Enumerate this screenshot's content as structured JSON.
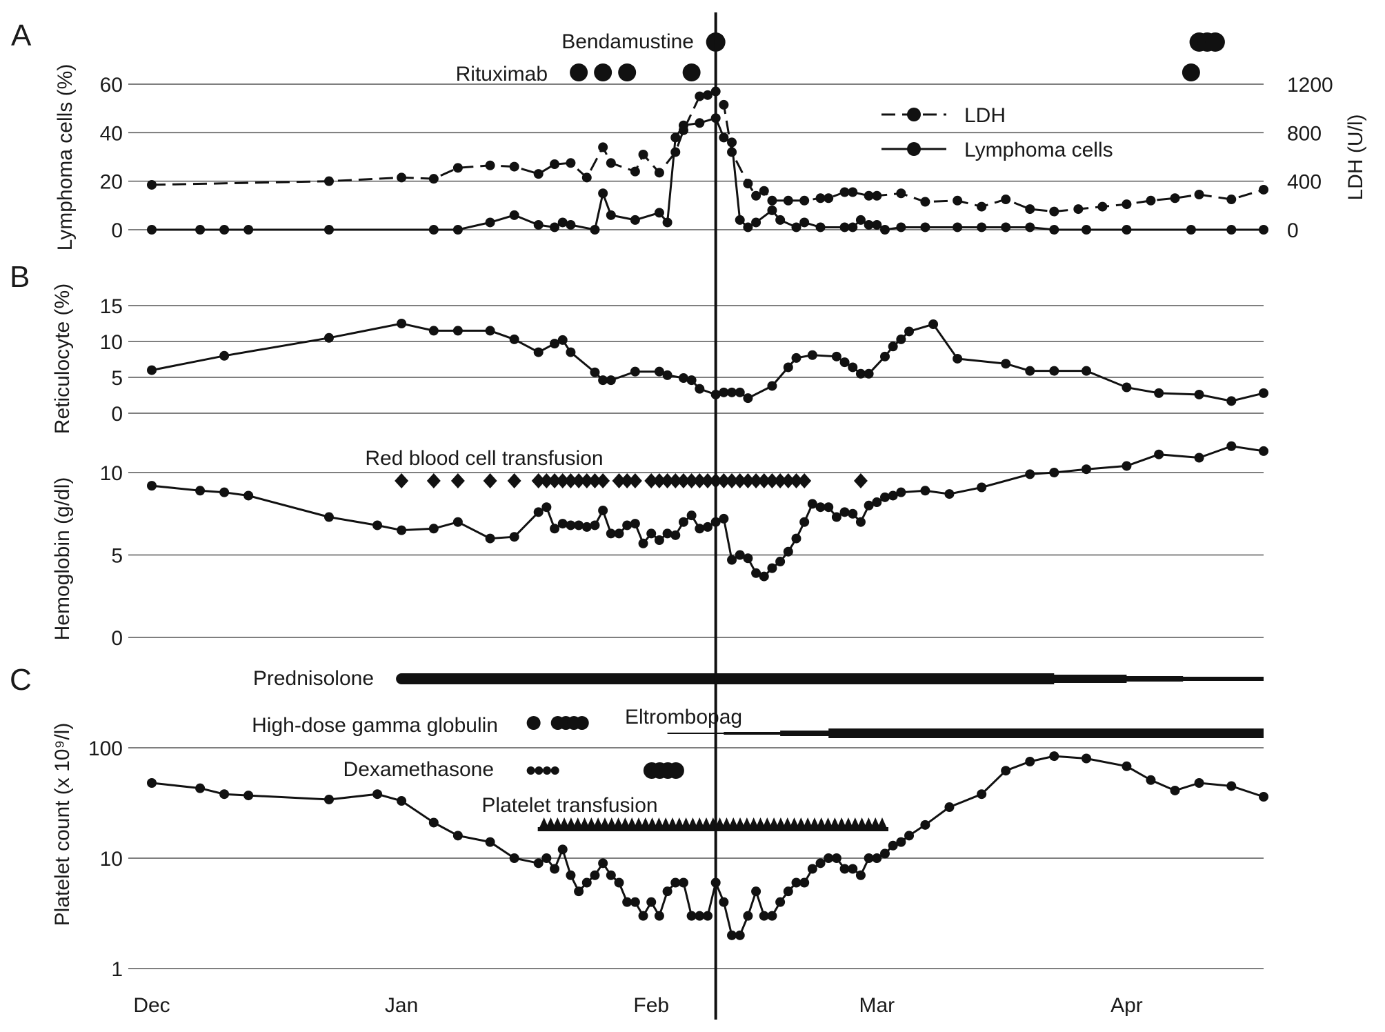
{
  "colors": {
    "ink": "#111111",
    "grid": "#555555",
    "background": "#ffffff"
  },
  "chart_data": {
    "type": "line",
    "x_axis": {
      "categories": [
        "Dec",
        "Jan",
        "Feb",
        "Mar",
        "Apr"
      ],
      "units": "days since Dec 1",
      "category_days": [
        0,
        31,
        62,
        90,
        121
      ],
      "range_days": [
        0,
        138
      ],
      "bendamustine_marker_day": 70
    },
    "panels": [
      {
        "id": "A",
        "letter": "A",
        "ylabel_left": "Lymphoma cells (%)",
        "ylabel_right": "LDH (U/l)",
        "ylim_left": [
          0,
          60
        ],
        "ylim_right": [
          0,
          1200
        ],
        "yticks_left": [
          "0",
          "20",
          "40",
          "60"
        ],
        "yticks_right": [
          "0",
          "400",
          "800",
          "1200"
        ],
        "legend": {
          "position": "top-right",
          "entries": [
            "LDH",
            "Lymphoma cells"
          ]
        },
        "series": [
          {
            "name": "LDH",
            "axis": "right",
            "style": "dashed",
            "x": [
              0,
              22,
              31,
              35,
              38,
              42,
              45,
              48,
              50,
              52,
              54,
              56,
              57,
              60,
              61,
              63,
              65,
              66,
              68,
              69,
              70,
              71,
              72,
              74,
              75,
              76,
              77,
              79,
              81,
              83,
              84,
              86,
              87,
              89,
              90,
              93,
              96,
              100,
              103,
              106,
              109,
              112,
              115,
              118,
              121,
              124,
              127,
              130,
              134,
              138
            ],
            "y": [
              370,
              400,
              430,
              420,
              510,
              530,
              520,
              460,
              540,
              550,
              430,
              680,
              550,
              480,
              620,
              470,
              640,
              820,
              1100,
              1110,
              1140,
              1030,
              640,
              380,
              280,
              320,
              240,
              240,
              240,
              260,
              260,
              310,
              310,
              280,
              280,
              300,
              230,
              240,
              190,
              250,
              170,
              150,
              170,
              190,
              210,
              240,
              260,
              290,
              250,
              330
            ]
          },
          {
            "name": "Lymphoma cells",
            "axis": "left",
            "style": "solid",
            "x": [
              0,
              6,
              9,
              12,
              22,
              35,
              38,
              42,
              45,
              48,
              50,
              51,
              52,
              55,
              56,
              57,
              60,
              63,
              64,
              65,
              66,
              68,
              70,
              71,
              72,
              73,
              74,
              75,
              77,
              78,
              80,
              81,
              83,
              86,
              87,
              88,
              89,
              90,
              91,
              93,
              96,
              100,
              103,
              106,
              109,
              112,
              116,
              121,
              129,
              134,
              138
            ],
            "y": [
              0,
              0,
              0,
              0,
              0,
              0,
              0,
              3,
              6,
              2,
              1,
              3,
              2,
              0,
              15,
              6,
              4,
              7,
              3,
              38,
              43,
              44,
              46,
              38,
              36,
              4,
              1,
              3,
              8,
              4,
              1,
              3,
              1,
              1,
              1,
              4,
              2,
              2,
              0,
              1,
              1,
              1,
              1,
              1,
              1,
              0,
              0,
              0,
              0,
              0,
              0
            ]
          }
        ],
        "markers": [
          {
            "label": "Bendamustine",
            "x": [
              70,
              130,
              131,
              132
            ]
          },
          {
            "label": "Rituximab",
            "x": [
              53,
              56,
              59,
              67,
              129
            ]
          }
        ]
      },
      {
        "id": "B",
        "letter": "B",
        "subplots": [
          {
            "ylabel": "Reticulocyte (%)",
            "ylim": [
              0,
              15
            ],
            "yticks": [
              "0",
              "5",
              "10",
              "15"
            ],
            "series": [
              {
                "name": "Reticulocyte",
                "x": [
                  0,
                  9,
                  22,
                  31,
                  35,
                  38,
                  42,
                  45,
                  48,
                  50,
                  51,
                  52,
                  55,
                  56,
                  57,
                  60,
                  63,
                  64,
                  66,
                  67,
                  68,
                  70,
                  71,
                  72,
                  73,
                  74,
                  77,
                  79,
                  80,
                  82,
                  85,
                  86,
                  87,
                  88,
                  89,
                  91,
                  92,
                  93,
                  94,
                  97,
                  100,
                  106,
                  109,
                  112,
                  116,
                  121,
                  125,
                  130,
                  134,
                  138
                ],
                "y": [
                  6,
                  8,
                  10.5,
                  12.5,
                  11.5,
                  11.5,
                  11.5,
                  10.3,
                  8.5,
                  9.7,
                  10.2,
                  8.5,
                  5.7,
                  4.6,
                  4.6,
                  5.8,
                  5.8,
                  5.3,
                  4.9,
                  4.6,
                  3.4,
                  2.6,
                  2.9,
                  2.9,
                  2.9,
                  2.1,
                  3.8,
                  6.4,
                  7.7,
                  8.1,
                  7.9,
                  7.1,
                  6.4,
                  5.5,
                  5.5,
                  7.9,
                  9.3,
                  10.3,
                  11.4,
                  12.4,
                  7.6,
                  6.9,
                  5.9,
                  5.9,
                  5.9,
                  3.6,
                  2.8,
                  2.6,
                  1.7,
                  2.8
                ]
              }
            ]
          },
          {
            "ylabel": "Hemoglobin (g/dl)",
            "ylim": [
              0,
              12.5
            ],
            "yticks": [
              "0",
              "5",
              "10"
            ],
            "series": [
              {
                "name": "Hemoglobin",
                "x": [
                  0,
                  6,
                  9,
                  12,
                  22,
                  28,
                  31,
                  35,
                  38,
                  42,
                  45,
                  48,
                  49,
                  50,
                  51,
                  52,
                  53,
                  54,
                  55,
                  56,
                  57,
                  58,
                  59,
                  60,
                  61,
                  62,
                  63,
                  64,
                  65,
                  66,
                  67,
                  68,
                  69,
                  70,
                  71,
                  72,
                  73,
                  74,
                  75,
                  76,
                  77,
                  78,
                  79,
                  80,
                  81,
                  82,
                  83,
                  84,
                  85,
                  86,
                  87,
                  88,
                  89,
                  90,
                  91,
                  92,
                  93,
                  96,
                  99,
                  103,
                  109,
                  112,
                  116,
                  121,
                  125,
                  130,
                  134,
                  138
                ],
                "y": [
                  9.2,
                  8.9,
                  8.8,
                  8.6,
                  7.3,
                  6.8,
                  6.5,
                  6.6,
                  7.0,
                  6.0,
                  6.1,
                  7.6,
                  7.9,
                  6.6,
                  6.9,
                  6.8,
                  6.8,
                  6.7,
                  6.8,
                  7.7,
                  6.3,
                  6.3,
                  6.8,
                  6.9,
                  5.7,
                  6.3,
                  5.9,
                  6.3,
                  6.2,
                  7.0,
                  7.4,
                  6.6,
                  6.7,
                  7.0,
                  7.2,
                  4.7,
                  5.0,
                  4.8,
                  3.9,
                  3.7,
                  4.2,
                  4.6,
                  5.2,
                  6.0,
                  7.0,
                  8.1,
                  7.9,
                  7.9,
                  7.3,
                  7.6,
                  7.5,
                  7.0,
                  8.0,
                  8.2,
                  8.5,
                  8.6,
                  8.8,
                  8.9,
                  8.7,
                  9.1,
                  9.9,
                  10.0,
                  10.2,
                  10.4,
                  11.1,
                  10.9,
                  11.6,
                  11.3
                ]
              }
            ],
            "markers": [
              {
                "label": "Red blood cell transfusion",
                "x": [
                  31,
                  35,
                  38,
                  42,
                  45,
                  48,
                  49,
                  50,
                  51,
                  52,
                  53,
                  54,
                  55,
                  56,
                  58,
                  59,
                  60,
                  62,
                  63,
                  64,
                  65,
                  66,
                  67,
                  68,
                  69,
                  70,
                  71,
                  72,
                  73,
                  74,
                  75,
                  76,
                  77,
                  78,
                  79,
                  80,
                  81,
                  88
                ]
              }
            ]
          }
        ]
      },
      {
        "id": "C",
        "letter": "C",
        "ylabel": "Platelet count (x 10⁹/l)",
        "yscale": "log",
        "ylim": [
          1,
          100
        ],
        "yticks": [
          "1",
          "10",
          "100"
        ],
        "series": [
          {
            "name": "Platelet count",
            "x": [
              0,
              6,
              9,
              12,
              22,
              28,
              31,
              35,
              38,
              42,
              45,
              48,
              49,
              50,
              51,
              52,
              53,
              54,
              55,
              56,
              57,
              58,
              59,
              60,
              61,
              62,
              63,
              64,
              65,
              66,
              67,
              68,
              69,
              70,
              71,
              72,
              73,
              74,
              75,
              76,
              77,
              78,
              79,
              80,
              81,
              82,
              83,
              84,
              85,
              86,
              87,
              88,
              89,
              90,
              91,
              92,
              93,
              94,
              96,
              99,
              103,
              106,
              109,
              112,
              116,
              121,
              124,
              127,
              130,
              134,
              138
            ],
            "y": [
              48,
              43,
              38,
              37,
              34,
              38,
              33,
              21,
              16,
              14,
              10,
              9,
              10,
              8,
              12,
              7,
              5,
              6,
              7,
              9,
              7,
              6,
              4,
              4,
              3,
              4,
              3,
              5,
              6,
              6,
              3,
              3,
              3,
              6,
              4,
              2,
              2,
              3,
              5,
              3,
              3,
              4,
              5,
              6,
              6,
              8,
              9,
              10,
              10,
              8,
              8,
              7,
              10,
              10,
              11,
              13,
              14,
              16,
              20,
              29,
              38,
              62,
              75,
              84,
              80,
              68,
              51,
              41,
              48,
              45,
              36
            ]
          }
        ],
        "dose_bars": [
          {
            "label": "Prednisolone",
            "start": 31,
            "end": 138
          },
          {
            "label": "Eltrombopag",
            "start": 64,
            "end": 138
          }
        ],
        "markers": [
          {
            "label": "High-dose gamma globulin",
            "x": [
              45,
              48,
              49,
              50,
              51
            ]
          },
          {
            "label": "Dexamethasone",
            "x": [
              45,
              46,
              47,
              48,
              60,
              61,
              62,
              63
            ]
          },
          {
            "label": "Platelet transfusion",
            "x_range": [
              48,
              91
            ]
          }
        ]
      }
    ]
  }
}
